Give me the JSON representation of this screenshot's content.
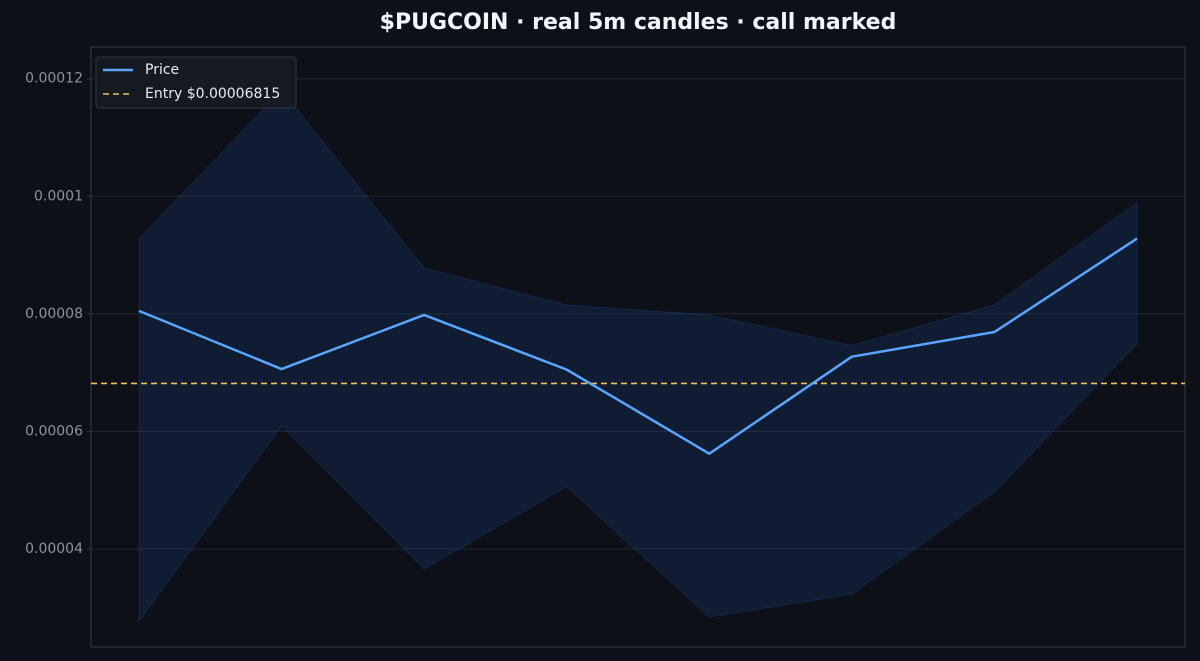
{
  "chart_data": {
    "type": "line",
    "title": "$PUGCOIN  ·  real 5m candles · call marked",
    "categories": [
      null,
      null,
      null,
      null,
      null,
      null,
      null,
      null
    ],
    "series": [
      {
        "name": "Price",
        "color": "#58a6ff",
        "values": [
          8.05e-05,
          7.06e-05,
          7.98e-05,
          7.05e-05,
          5.62e-05,
          7.27e-05,
          7.69e-05,
          9.28e-05
        ]
      }
    ],
    "band": {
      "color": "#1f6feb",
      "high": [
        9.28e-05,
        0.000118,
        8.78e-05,
        8.15e-05,
        7.98e-05,
        7.46e-05,
        8.15e-05,
        9.89e-05
      ],
      "low": [
        2.77e-05,
        6.09e-05,
        3.66e-05,
        5.06e-05,
        2.84e-05,
        3.23e-05,
        4.97e-05,
        7.49e-05
      ]
    },
    "reference_line": {
      "label": "Entry $0.00006815",
      "value": 6.815e-05,
      "color": "#f2c14e"
    },
    "ylim": [
      2.33e-05,
      0.0001254
    ],
    "yticks": [
      4e-05,
      6e-05,
      8e-05,
      0.0001,
      0.00012
    ],
    "grid": true,
    "legend": "upper left"
  }
}
